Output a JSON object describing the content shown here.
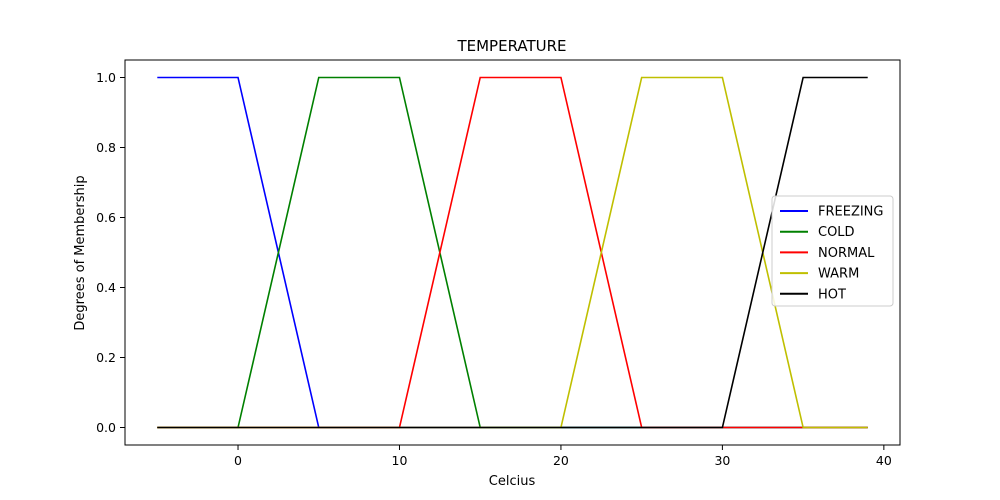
{
  "chart_data": {
    "type": "line",
    "title": "TEMPERATURE",
    "xlabel": "Celcius",
    "ylabel": "Degrees of Membership",
    "xlim": [
      -7,
      41
    ],
    "ylim": [
      -0.05,
      1.05
    ],
    "xticks": [
      0,
      10,
      20,
      30,
      40
    ],
    "yticks": [
      0.0,
      0.2,
      0.4,
      0.6,
      0.8,
      1.0
    ],
    "xtick_labels": [
      "0",
      "10",
      "20",
      "30",
      "40"
    ],
    "ytick_labels": [
      "0.0",
      "0.2",
      "0.4",
      "0.6",
      "0.8",
      "1.0"
    ],
    "grid": false,
    "legend_position": "center-right",
    "series": [
      {
        "name": "FREEZING",
        "color": "#0000ff",
        "x": [
          -5,
          0,
          5,
          39
        ],
        "y": [
          1,
          1,
          0,
          0
        ]
      },
      {
        "name": "COLD",
        "color": "#008000",
        "x": [
          -5,
          0,
          5,
          10,
          15,
          39
        ],
        "y": [
          0,
          0,
          1,
          1,
          0,
          0
        ]
      },
      {
        "name": "NORMAL",
        "color": "#ff0000",
        "x": [
          -5,
          10,
          15,
          20,
          25,
          39
        ],
        "y": [
          0,
          0,
          1,
          1,
          0,
          0
        ]
      },
      {
        "name": "WARM",
        "color": "#bfbf00",
        "x": [
          -5,
          20,
          25,
          30,
          35,
          39
        ],
        "y": [
          0,
          0,
          1,
          1,
          0,
          0
        ]
      },
      {
        "name": "HOT",
        "color": "#000000",
        "x": [
          -5,
          30,
          35,
          39
        ],
        "y": [
          0,
          0,
          1,
          1
        ]
      }
    ]
  }
}
